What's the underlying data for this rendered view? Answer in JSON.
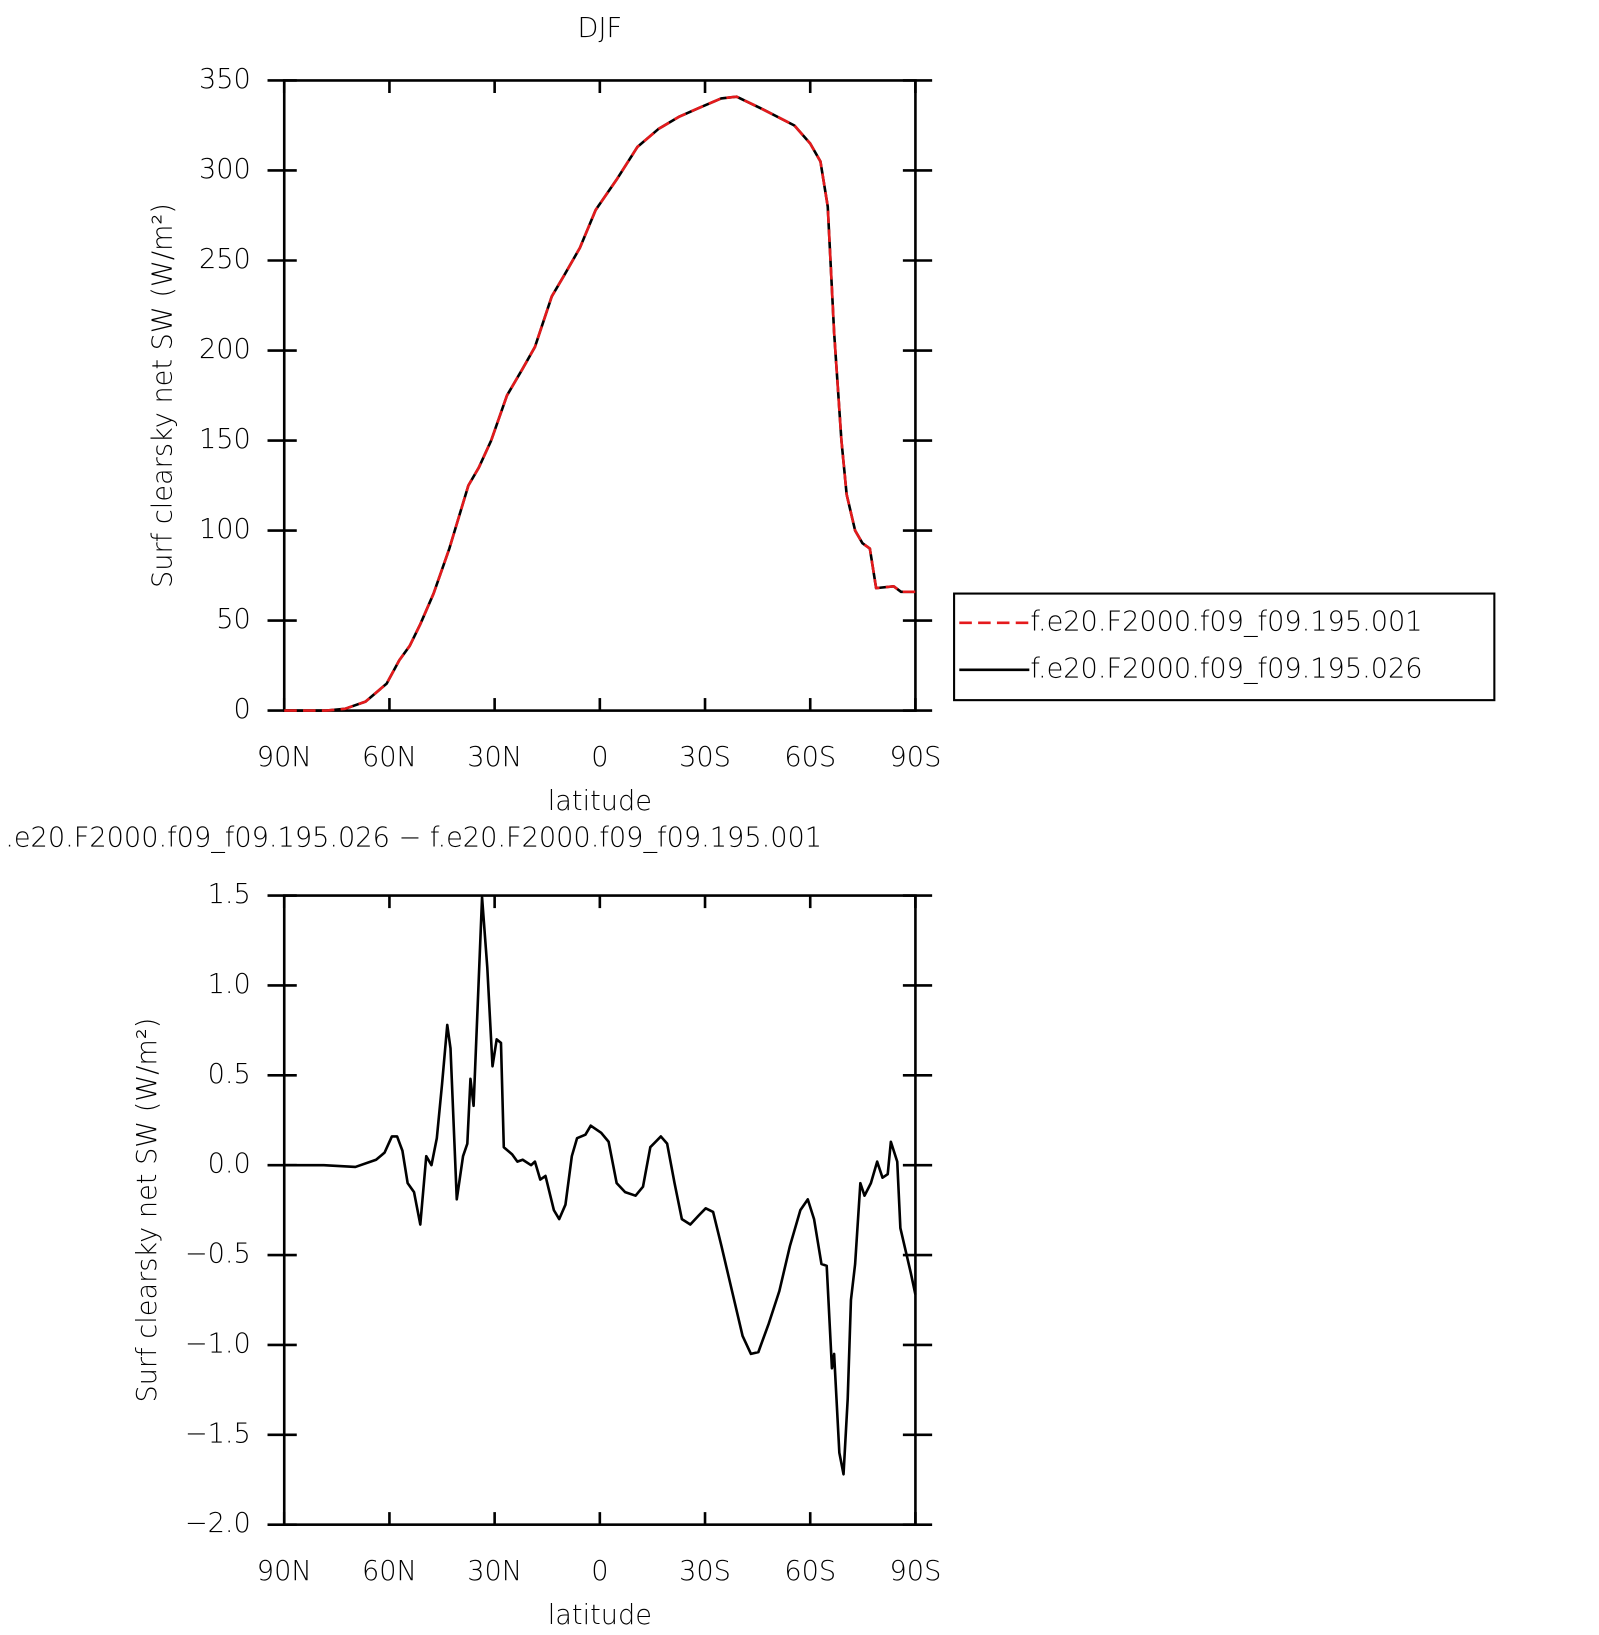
{
  "chart_data": [
    {
      "type": "line",
      "title": "DJF",
      "xlabel": "latitude",
      "ylabel": "Surf clearsky net SW (W/m²)",
      "x": [
        90,
        78,
        72.7,
        66.8,
        60.8,
        57.2,
        54.2,
        51.2,
        47.4,
        42.9,
        37.5,
        34.5,
        31,
        26.5,
        22,
        18.5,
        13.7,
        10.1,
        5.7,
        1.2,
        -4.8,
        -10.7,
        -16.7,
        -22.7,
        -28.6,
        -34.6,
        -39,
        -46.5,
        -55.5,
        -60,
        -62.9,
        -65,
        -66.8,
        -68.9,
        -70.4,
        -72.8,
        -74.9,
        -77,
        -78.8,
        -83.8,
        -85.9,
        -90
      ],
      "series": [
        {
          "name": "f.e20.F2000.f09_f09.195.001",
          "color": "#e41a1c",
          "dash": true,
          "values": [
            0,
            0,
            1,
            5,
            15,
            28,
            36,
            48,
            65,
            90,
            125,
            135,
            150,
            175,
            190,
            202,
            230,
            242,
            257,
            278,
            295,
            313,
            323,
            330,
            335,
            340,
            341,
            334,
            325,
            315,
            305,
            280,
            210,
            150,
            120,
            100,
            93,
            90,
            68,
            69,
            66,
            66
          ]
        },
        {
          "name": "f.e20.F2000.f09_f09.195.026",
          "color": "#000000",
          "dash": false,
          "values": [
            0,
            0,
            1,
            5,
            15,
            28,
            36,
            48,
            65,
            90,
            125,
            135,
            150,
            175,
            190,
            202,
            230,
            242,
            257,
            278,
            295,
            313,
            323,
            330,
            335,
            340,
            341,
            334,
            325,
            315,
            305,
            280,
            210,
            150,
            120,
            100,
            93,
            90,
            68,
            69,
            66,
            66
          ]
        }
      ],
      "xlim": [
        90,
        -90
      ],
      "xticks": [
        {
          "value": 90,
          "label": "90N"
        },
        {
          "value": 60,
          "label": "60N"
        },
        {
          "value": 30,
          "label": "30N"
        },
        0,
        {
          "value": -30,
          "label": "30S"
        },
        {
          "value": -60,
          "label": "60S"
        },
        {
          "value": -90,
          "label": "90S"
        }
      ],
      "ylim": [
        0,
        350
      ],
      "yticks": [
        0,
        50,
        100,
        150,
        200,
        250,
        300,
        350
      ],
      "legend": "right"
    },
    {
      "type": "line",
      "title": ".e20.F2000.f09_f09.195.026 − f.e20.F2000.f09_f09.195.001",
      "xlabel": "latitude",
      "ylabel": "Surf clearsky net SW (W/m²)",
      "x": [
        90,
        78.7,
        69.7,
        63.8,
        61.4,
        59.3,
        57.8,
        56.3,
        54.8,
        53,
        51.2,
        49.5,
        48,
        46.5,
        45,
        43.5,
        42.6,
        40.8,
        39,
        37.8,
        36.9,
        36,
        34.8,
        33.6,
        32.1,
        30.6,
        29.4,
        28.2,
        27.4,
        25,
        23.5,
        22,
        19.6,
        18.5,
        17,
        15.5,
        13.1,
        11.6,
        9.8,
        8,
        6.5,
        4.1,
        2.6,
        -0.4,
        -2.5,
        -4.8,
        -7.2,
        -10.2,
        -12.3,
        -14.4,
        -17.4,
        -19.2,
        -21.3,
        -23.4,
        -25.8,
        -28.2,
        -30.2,
        -32.3,
        -34.7,
        -37.7,
        -40.7,
        -43.1,
        -45.2,
        -48.2,
        -51.2,
        -54.2,
        -57.2,
        -59.3,
        -61.1,
        -63.2,
        -64.7,
        -66.2,
        -66.8,
        -68.3,
        -69.5,
        -70.7,
        -71.6,
        -72.8,
        -74.3,
        -75.5,
        -77.3,
        -79.1,
        -80.6,
        -82.1,
        -83,
        -84.8,
        -85.7,
        -88.7,
        -90
      ],
      "series": [
        {
          "color": "#000000",
          "dash": false,
          "values": [
            0,
            0,
            -0.01,
            0.03,
            0.07,
            0.16,
            0.16,
            0.08,
            -0.1,
            -0.15,
            -0.33,
            0.05,
            0,
            0.15,
            0.45,
            0.78,
            0.65,
            -0.19,
            0.05,
            0.12,
            0.48,
            0.33,
            0.9,
            1.49,
            1.1,
            0.55,
            0.7,
            0.68,
            0.1,
            0.06,
            0.02,
            0.03,
            0,
            0.02,
            -0.08,
            -0.06,
            -0.25,
            -0.3,
            -0.22,
            0.05,
            0.15,
            0.17,
            0.22,
            0.18,
            0.13,
            -0.1,
            -0.15,
            -0.17,
            -0.12,
            0.1,
            0.16,
            0.12,
            -0.1,
            -0.3,
            -0.33,
            -0.28,
            -0.24,
            -0.26,
            -0.45,
            -0.7,
            -0.95,
            -1.05,
            -1.04,
            -0.88,
            -0.7,
            -0.45,
            -0.25,
            -0.19,
            -0.3,
            -0.55,
            -0.56,
            -1.13,
            -1.05,
            -1.6,
            -1.72,
            -1.3,
            -0.75,
            -0.55,
            -0.1,
            -0.17,
            -0.1,
            0.02,
            -0.07,
            -0.05,
            0.13,
            0.02,
            -0.35,
            -0.6,
            -0.72
          ]
        }
      ],
      "xlim": [
        90,
        -90
      ],
      "xticks": [
        {
          "value": 90,
          "label": "90N"
        },
        {
          "value": 60,
          "label": "60N"
        },
        {
          "value": 30,
          "label": "30N"
        },
        0,
        {
          "value": -30,
          "label": "30S"
        },
        {
          "value": -60,
          "label": "60S"
        },
        {
          "value": -90,
          "label": "90S"
        }
      ],
      "ylim": [
        -2,
        1.5
      ],
      "yticks": [
        {
          "value": -2,
          "label": "−2.0"
        },
        {
          "value": -1.5,
          "label": "−1.5"
        },
        {
          "value": -1,
          "label": "−1.0"
        },
        {
          "value": -0.5,
          "label": "−0.5"
        },
        {
          "value": 0,
          "label": "0.0"
        },
        0.5,
        {
          "value": 1,
          "label": "1.0"
        },
        1.5
      ]
    }
  ]
}
